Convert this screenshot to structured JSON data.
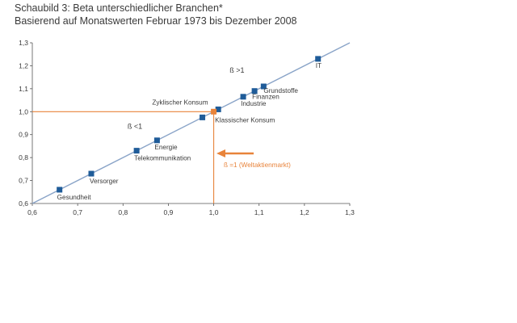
{
  "title": "Schaubild 3: Beta unterschiedlicher Branchen*",
  "subtitle": "Basierend auf Monatswerten Februar 1973 bis Dezember 2008",
  "colors": {
    "line": "#8aa4c8",
    "marker": "#1f5c99",
    "accent": "#e8833a",
    "axis": "#555555",
    "text": "#3a3a3a"
  },
  "chart_data": {
    "type": "scatter",
    "xlim": [
      0.6,
      1.3
    ],
    "ylim": [
      0.6,
      1.3
    ],
    "x_ticks": [
      "0,6",
      "0,7",
      "0,8",
      "0,9",
      "1,0",
      "1,1",
      "1,2",
      "1,3"
    ],
    "y_ticks": [
      "0,6",
      "0,7",
      "0,8",
      "0,9",
      "1,0",
      "1,1",
      "1,2",
      "1,3"
    ],
    "grid": false,
    "diagonal": {
      "from": [
        0.6,
        0.6
      ],
      "to": [
        1.3,
        1.3
      ]
    },
    "points": [
      {
        "label": "Gesundheit",
        "x": 0.66,
        "y": 0.66
      },
      {
        "label": "Versorger",
        "x": 0.73,
        "y": 0.73
      },
      {
        "label": "Telekommunikation",
        "x": 0.83,
        "y": 0.83
      },
      {
        "label": "Energie",
        "x": 0.875,
        "y": 0.875
      },
      {
        "label": "Zyklischer Konsum",
        "x": 0.975,
        "y": 0.975
      },
      {
        "label": "Klassischer Konsum",
        "x": 1.01,
        "y": 1.01
      },
      {
        "label": "Industrie",
        "x": 1.065,
        "y": 1.065
      },
      {
        "label": "Finanzen",
        "x": 1.09,
        "y": 1.09
      },
      {
        "label": "Grundstoffe",
        "x": 1.11,
        "y": 1.11
      },
      {
        "label": "IT",
        "x": 1.23,
        "y": 1.23
      }
    ],
    "reference": {
      "x": 1.0,
      "y": 1.0,
      "label": "ß =1 (Weltaktienmarkt)"
    },
    "annotations": [
      {
        "text": "ß >1",
        "x": 1.035,
        "y": 1.17
      },
      {
        "text": "ß <1",
        "x": 0.81,
        "y": 0.925
      }
    ]
  }
}
